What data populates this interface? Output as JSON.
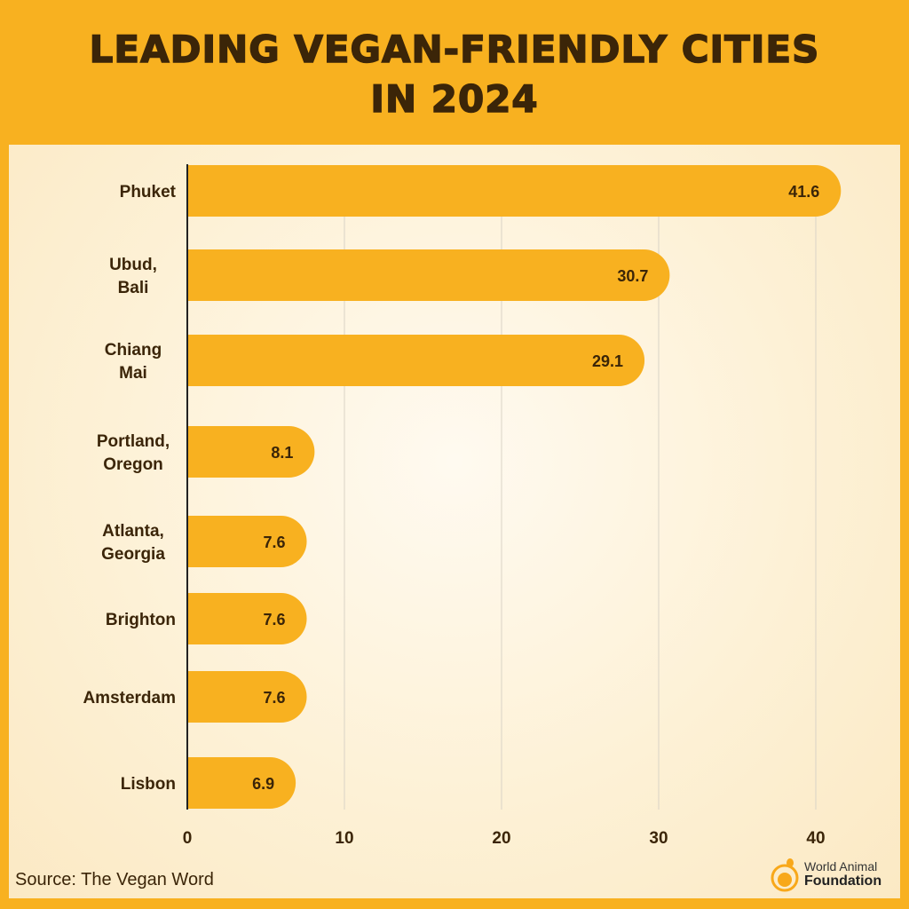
{
  "chart_data": {
    "type": "bar",
    "orientation": "horizontal",
    "title": "LEADING VEGAN-FRIENDLY CITIES IN 2024",
    "categories": [
      "Phuket",
      "Ubud,\nBali",
      "Chiang\nMai",
      "Portland,\nOregon",
      "Atlanta,\nGeorgia",
      "Brighton",
      "Amsterdam",
      "Lisbon"
    ],
    "values": [
      41.6,
      30.7,
      29.1,
      8.1,
      7.6,
      7.6,
      7.6,
      6.9
    ],
    "xlim": [
      0,
      40
    ],
    "xticks": [
      "0",
      "10",
      "20",
      "30",
      "40"
    ],
    "grid": true,
    "bar_color": "#f8b120",
    "text_color": "#3b2508"
  },
  "footer": {
    "source": "Source: The Vegan Word"
  },
  "logo": {
    "line1": "World Animal",
    "line2": "Foundation"
  }
}
